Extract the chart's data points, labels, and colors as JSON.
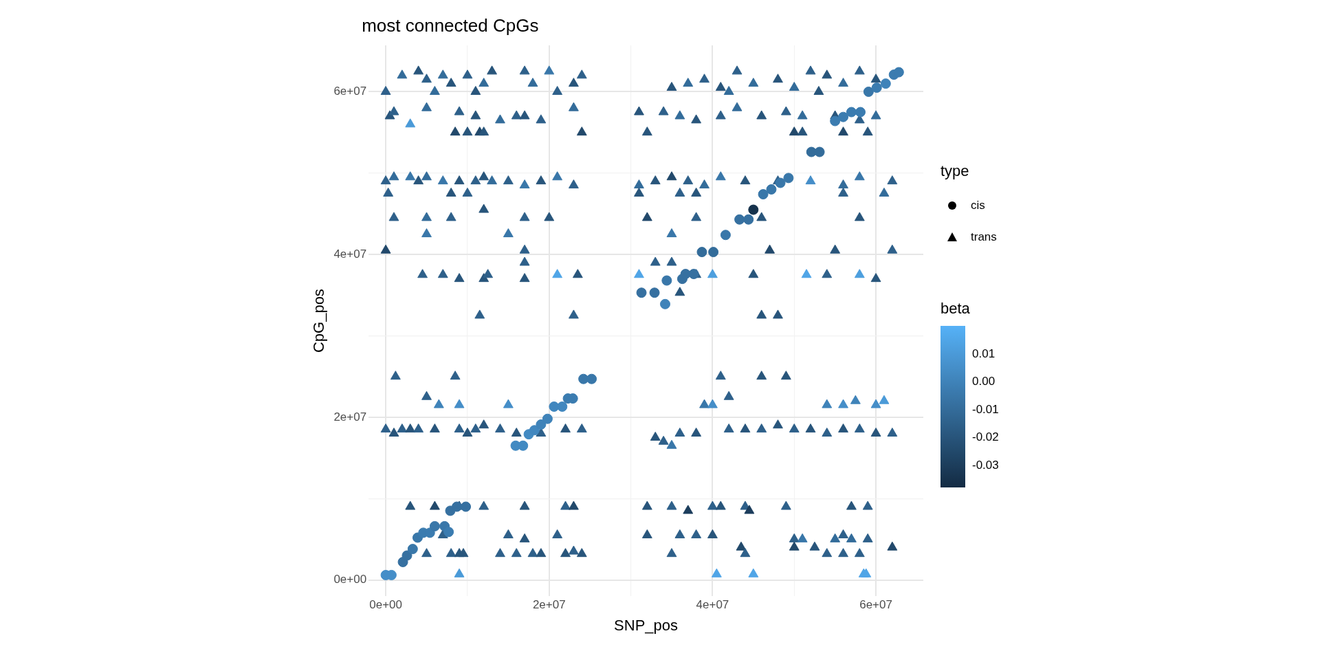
{
  "chart_data": {
    "type": "scatter",
    "title": "most connected CpGs",
    "xlabel": "SNP_pos",
    "ylabel": "CpG_pos",
    "legend_title": "type",
    "clabel": "beta",
    "xlim": [
      -2100000.0,
      65800000.0
    ],
    "ylim": [
      -2000000.0,
      65700000.0
    ],
    "xticks": [
      {
        "value": 0,
        "label": "0e+00"
      },
      {
        "value": 10000000.0,
        "label": null
      },
      {
        "value": 20000000.0,
        "label": "2e+07"
      },
      {
        "value": 30000000.0,
        "label": null
      },
      {
        "value": 40000000.0,
        "label": "4e+07"
      },
      {
        "value": 50000000.0,
        "label": null
      },
      {
        "value": 60000000.0,
        "label": "6e+07"
      }
    ],
    "yticks": [
      {
        "value": 0,
        "label": "0e+00"
      },
      {
        "value": 10000000.0,
        "label": null
      },
      {
        "value": 20000000.0,
        "label": "2e+07"
      },
      {
        "value": 30000000.0,
        "label": null
      },
      {
        "value": 40000000.0,
        "label": "4e+07"
      },
      {
        "value": 50000000.0,
        "label": null
      },
      {
        "value": 60000000.0,
        "label": "6e+07"
      }
    ],
    "clim": [
      -0.038,
      0.02
    ],
    "cticks": [
      0.01,
      {
        "value": 0,
        "label": "0.00"
      },
      -0.01,
      -0.02,
      -0.03
    ],
    "grid": true,
    "legend": "right",
    "series": [
      {
        "name": "cis",
        "marker": "circle",
        "x": [
          0,
          700000.0,
          2100000.0,
          2600000.0,
          3300000.0,
          3900000.0,
          4600000.0,
          5400000.0,
          6000000.0,
          7200000.0,
          7700000.0,
          7900000.0,
          8700000.0,
          9800000.0,
          15900000.0,
          16800000.0,
          17500000.0,
          18200000.0,
          19000000.0,
          19800000.0,
          20600000.0,
          21600000.0,
          22300000.0,
          22900000.0,
          24200000.0,
          25200000.0,
          31300000.0,
          32900000.0,
          34200000.0,
          34400000.0,
          36300000.0,
          36700000.0,
          37700000.0,
          38700000.0,
          40100000.0,
          41600000.0,
          43300000.0,
          44400000.0,
          45000000.0,
          46200000.0,
          47200000.0,
          48300000.0,
          49300000.0,
          52100000.0,
          53100000.0,
          55000000.0,
          56000000.0,
          57000000.0,
          58100000.0,
          59100000.0,
          60100000.0,
          61200000.0,
          62200000.0,
          62800000.0
        ],
        "values": [
          600000.0,
          600000.0,
          2200000.0,
          3000000.0,
          3800000.0,
          5200000.0,
          5800000.0,
          5800000.0,
          6600000.0,
          6600000.0,
          5900000.0,
          8500000.0,
          9000000.0,
          9000000.0,
          16500000.0,
          16500000.0,
          17900000.0,
          18400000.0,
          19100000.0,
          19800000.0,
          21300000.0,
          21300000.0,
          22300000.0,
          22300000.0,
          24700000.0,
          24700000.0,
          35300000.0,
          35300000.0,
          33900000.0,
          36800000.0,
          37000000.0,
          37600000.0,
          37600000.0,
          40300000.0,
          40300000.0,
          42400000.0,
          44300000.0,
          44300000.0,
          45500000.0,
          47400000.0,
          48000000.0,
          48800000.0,
          49400000.0,
          52600000.0,
          52600000.0,
          56400000.0,
          56900000.0,
          57500000.0,
          57500000.0,
          60000000.0,
          60500000.0,
          61000000.0,
          62100000.0,
          62400000.0
        ],
        "colors": [
          "#458ec8",
          "#458ec8",
          "#3670a0",
          "#3670a0",
          "#3977a9",
          "#3977a9",
          "#3b7cb0",
          "#3b7cb0",
          "#3977a9",
          "#3977a9",
          "#3b7cb0",
          "#3670a0",
          "#3670a0",
          "#3670a0",
          "#428ac2",
          "#428ac2",
          "#428ac2",
          "#4187bf",
          "#3f83b9",
          "#3f83b9",
          "#4187bf",
          "#4187bf",
          "#3b7cb0",
          "#3b7cb0",
          "#3977a9",
          "#3977a9",
          "#3670a0",
          "#3670a0",
          "#3f83b9",
          "#3977a9",
          "#3670a0",
          "#3670a0",
          "#3670a0",
          "#336c9a",
          "#336c9a",
          "#3977a9",
          "#3670a0",
          "#3670a0",
          "#16324c",
          "#3977a9",
          "#3977a9",
          "#3977a9",
          "#3977a9",
          "#336c9a",
          "#336c9a",
          "#3b7cb0",
          "#3b7cb0",
          "#3b7cb0",
          "#3b7cb0",
          "#3977a9",
          "#3b7cb0",
          "#3f83b9",
          "#3b7cb0",
          "#3b7cb0"
        ],
        "cvalues": [
          0.005,
          0.005,
          -0.008,
          -0.008,
          -0.005,
          -0.005,
          -0.003,
          -0.003,
          -0.005,
          -0.005,
          -0.003,
          -0.008,
          -0.008,
          -0.008,
          0.003,
          0.003,
          0.003,
          0.002,
          0,
          0,
          0.002,
          0.002,
          -0.003,
          -0.003,
          -0.005,
          -0.005,
          -0.008,
          -0.008,
          0,
          -0.005,
          -0.008,
          -0.008,
          -0.008,
          -0.01,
          -0.01,
          -0.005,
          -0.008,
          -0.008,
          -0.035,
          -0.005,
          -0.005,
          -0.005,
          -0.005,
          -0.01,
          -0.01,
          -0.003,
          -0.003,
          -0.003,
          -0.003,
          -0.005,
          -0.003,
          0,
          -0.003,
          -0.003
        ]
      },
      {
        "name": "trans",
        "marker": "triangle",
        "x": [
          2000000.0,
          4000000.0,
          5000000.0,
          7000000.0,
          8000000.0,
          10000000.0,
          12000000.0,
          13000000.0,
          17000000.0,
          18000000.0,
          20000000.0,
          23000000.0,
          24000000.0,
          35000000.0,
          37000000.0,
          39000000.0,
          41000000.0,
          43000000.0,
          45000000.0,
          48000000.0,
          50000000.0,
          52000000.0,
          54000000.0,
          56000000.0,
          58000000.0,
          60000000.0,
          0,
          6000000.0,
          11000000.0,
          21000000.0,
          42000000.0,
          53000000.0,
          500000.0,
          1000000.0,
          3000000.0,
          5000000.0,
          9000000.0,
          11000000.0,
          14000000.0,
          16000000.0,
          17000000.0,
          19000000.0,
          23000000.0,
          31000000.0,
          34000000.0,
          36000000.0,
          38000000.0,
          41000000.0,
          43000000.0,
          46000000.0,
          49000000.0,
          51000000.0,
          55000000.0,
          58000000.0,
          60000000.0,
          8500000.0,
          10000000.0,
          11500000.0,
          12000000.0,
          24000000.0,
          32000000.0,
          50000000.0,
          51000000.0,
          56000000.0,
          59000000.0,
          0,
          1000000.0,
          3000000.0,
          4000000.0,
          5000000.0,
          7000000.0,
          9000000.0,
          11000000.0,
          12000000.0,
          13000000.0,
          15000000.0,
          17000000.0,
          19000000.0,
          21000000.0,
          23000000.0,
          31000000.0,
          33000000.0,
          35000000.0,
          37000000.0,
          39000000.0,
          41000000.0,
          44000000.0,
          48000000.0,
          52000000.0,
          56000000.0,
          58000000.0,
          62000000.0,
          300000.0,
          8000000.0,
          10000000.0,
          31000000.0,
          36000000.0,
          38000000.0,
          56000000.0,
          61000000.0,
          1000000.0,
          5000000.0,
          8000000.0,
          12000000.0,
          17000000.0,
          20000000.0,
          32000000.0,
          38000000.0,
          46000000.0,
          58000000.0,
          5000000.0,
          15000000.0,
          35000000.0,
          0,
          17000000.0,
          47000000.0,
          55000000.0,
          62000000.0,
          17000000.0,
          4500000.0,
          7000000.0,
          9000000.0,
          12000000.0,
          12500000.0,
          17000000.0,
          21000000.0,
          23500000.0,
          31000000.0,
          38000000.0,
          40000000.0,
          45000000.0,
          51500000.0,
          54000000.0,
          58000000.0,
          60000000.0,
          33000000.0,
          35000000.0,
          11500000.0,
          23000000.0,
          36000000.0,
          46000000.0,
          48000000.0,
          1200000.0,
          8500000.0,
          41000000.0,
          46000000.0,
          49000000.0,
          5000000.0,
          6500000.0,
          9000000.0,
          15000000.0,
          39000000.0,
          40000000.0,
          42000000.0,
          54000000.0,
          56000000.0,
          57500000.0,
          60000000.0,
          61000000.0,
          0,
          1000000.0,
          2000000.0,
          3000000.0,
          4000000.0,
          6000000.0,
          9000000.0,
          10000000.0,
          11000000.0,
          12000000.0,
          14000000.0,
          16000000.0,
          19000000.0,
          22000000.0,
          24000000.0,
          33000000.0,
          34000000.0,
          35000000.0,
          36000000.0,
          38000000.0,
          42000000.0,
          44000000.0,
          46000000.0,
          48000000.0,
          50000000.0,
          52000000.0,
          54000000.0,
          56000000.0,
          58000000.0,
          60000000.0,
          62000000.0,
          3000000.0,
          6000000.0,
          9000000.0,
          12000000.0,
          17000000.0,
          22000000.0,
          23000000.0,
          32000000.0,
          35000000.0,
          37000000.0,
          40000000.0,
          41000000.0,
          44000000.0,
          44500000.0,
          49000000.0,
          57000000.0,
          59000000.0,
          7000000.0,
          15000000.0,
          17000000.0,
          21000000.0,
          32000000.0,
          36000000.0,
          38000000.0,
          40000000.0,
          50000000.0,
          51000000.0,
          55000000.0,
          56000000.0,
          57000000.0,
          59000000.0,
          43500000.0,
          50000000.0,
          52500000.0,
          62000000.0,
          5000000.0,
          8000000.0,
          9000000.0,
          9500000.0,
          14000000.0,
          16000000.0,
          18000000.0,
          19000000.0,
          22000000.0,
          23000000.0,
          24000000.0,
          35000000.0,
          44000000.0,
          54000000.0,
          56000000.0,
          58000000.0,
          9000000.0,
          40500000.0,
          45000000.0,
          58500000.0,
          58800000.0
        ],
        "values": [
          62000000.0,
          62500000.0,
          61500000.0,
          62000000.0,
          61000000.0,
          62000000.0,
          61000000.0,
          62500000.0,
          62500000.0,
          61000000.0,
          62500000.0,
          61000000.0,
          62000000.0,
          60500000.0,
          61000000.0,
          61500000.0,
          60500000.0,
          62500000.0,
          61000000.0,
          61500000.0,
          60500000.0,
          62500000.0,
          62000000.0,
          61000000.0,
          62500000.0,
          61500000.0,
          60000000.0,
          60000000.0,
          60000000.0,
          60000000.0,
          60000000.0,
          60000000.0,
          57000000.0,
          57500000.0,
          56000000.0,
          58000000.0,
          57500000.0,
          57000000.0,
          56500000.0,
          57000000.0,
          57000000.0,
          56500000.0,
          58000000.0,
          57500000.0,
          57500000.0,
          57000000.0,
          56500000.0,
          57000000.0,
          58000000.0,
          57000000.0,
          57500000.0,
          57000000.0,
          57000000.0,
          56500000.0,
          57000000.0,
          55000000.0,
          55000000.0,
          55000000.0,
          55000000.0,
          55000000.0,
          55000000.0,
          55000000.0,
          55000000.0,
          55000000.0,
          55000000.0,
          49000000.0,
          49500000.0,
          49500000.0,
          49000000.0,
          49500000.0,
          49000000.0,
          49000000.0,
          49000000.0,
          49500000.0,
          49000000.0,
          49000000.0,
          48500000.0,
          49000000.0,
          49500000.0,
          48500000.0,
          48500000.0,
          49000000.0,
          49500000.0,
          49000000.0,
          48500000.0,
          49500000.0,
          49000000.0,
          49000000.0,
          49000000.0,
          48500000.0,
          49500000.0,
          49000000.0,
          47500000.0,
          47500000.0,
          47500000.0,
          47500000.0,
          47500000.0,
          47500000.0,
          47500000.0,
          47500000.0,
          44500000.0,
          44500000.0,
          44500000.0,
          45500000.0,
          44500000.0,
          44500000.0,
          44500000.0,
          44500000.0,
          44500000.0,
          44500000.0,
          42500000.0,
          42500000.0,
          42500000.0,
          40500000.0,
          40500000.0,
          40500000.0,
          40500000.0,
          40500000.0,
          39000000.0,
          37500000.0,
          37500000.0,
          37000000.0,
          37000000.0,
          37500000.0,
          37000000.0,
          37500000.0,
          37500000.0,
          37500000.0,
          37500000.0,
          37500000.0,
          37500000.0,
          37500000.0,
          37500000.0,
          37500000.0,
          37000000.0,
          39000000.0,
          39000000.0,
          32500000.0,
          32500000.0,
          35300000.0,
          32500000.0,
          32500000.0,
          25000000.0,
          25000000.0,
          25000000.0,
          25000000.0,
          25000000.0,
          22500000.0,
          21500000.0,
          21500000.0,
          21500000.0,
          21500000.0,
          21500000.0,
          22500000.0,
          21500000.0,
          21500000.0,
          22000000.0,
          21500000.0,
          22000000.0,
          18500000.0,
          18000000.0,
          18500000.0,
          18500000.0,
          18500000.0,
          18500000.0,
          18500000.0,
          18000000.0,
          18500000.0,
          19000000.0,
          18500000.0,
          18000000.0,
          18000000.0,
          18500000.0,
          18500000.0,
          17500000.0,
          17000000.0,
          16500000.0,
          18000000.0,
          18000000.0,
          18500000.0,
          18500000.0,
          18500000.0,
          19000000.0,
          18500000.0,
          18500000.0,
          18000000.0,
          18500000.0,
          18500000.0,
          18000000.0,
          18000000.0,
          9000000.0,
          9000000.0,
          9000000.0,
          9000000.0,
          9000000.0,
          9000000.0,
          9000000.0,
          9000000.0,
          9000000.0,
          8500000.0,
          9000000.0,
          9000000.0,
          9000000.0,
          8500000.0,
          9000000.0,
          9000000.0,
          9000000.0,
          5500000.0,
          5500000.0,
          5000000.0,
          5500000.0,
          5500000.0,
          5500000.0,
          5500000.0,
          5500000.0,
          5000000.0,
          5000000.0,
          5000000.0,
          5500000.0,
          5000000.0,
          5000000.0,
          4000000.0,
          4000000.0,
          4000000.0,
          4000000.0,
          3200000.0,
          3200000.0,
          3200000.0,
          3200000.0,
          3200000.0,
          3200000.0,
          3200000.0,
          3200000.0,
          3200000.0,
          3500000.0,
          3200000.0,
          3200000.0,
          3200000.0,
          3200000.0,
          3200000.0,
          3200000.0,
          700000.0,
          700000.0,
          700000.0,
          700000.0,
          700000.0
        ],
        "colors": [
          "#336c9a",
          "#28557b",
          "#2e608a",
          "#336c9a",
          "#28557b",
          "#2e608a",
          "#336c9a",
          "#28557b",
          "#2e608a",
          "#336c9a",
          "#3977a9",
          "#28557b",
          "#2e608a",
          "#28557b",
          "#336c9a",
          "#2e608a",
          "#28557b",
          "#2e608a",
          "#336c9a",
          "#28557b",
          "#336c9a",
          "#2e608a",
          "#28557b",
          "#336c9a",
          "#2e608a",
          "#28557b",
          "#2e608a",
          "#336c9a",
          "#28557b",
          "#2e608a",
          "#336c9a",
          "#28557b",
          "#28557b",
          "#2e608a",
          "#4a9ad8",
          "#336c9a",
          "#2e608a",
          "#28557b",
          "#336c9a",
          "#2e608a",
          "#28557b",
          "#2e608a",
          "#336c9a",
          "#28557b",
          "#2e608a",
          "#336c9a",
          "#28557b",
          "#2e608a",
          "#336c9a",
          "#28557b",
          "#2e608a",
          "#336c9a",
          "#28557b",
          "#2e608a",
          "#336c9a",
          "#22496b",
          "#28557b",
          "#22496b",
          "#28557b",
          "#22496b",
          "#28557b",
          "#22496b",
          "#28557b",
          "#22496b",
          "#28557b",
          "#2e608a",
          "#336c9a",
          "#3977a9",
          "#28557b",
          "#336c9a",
          "#3977a9",
          "#28557b",
          "#2e608a",
          "#28557b",
          "#336c9a",
          "#2e608a",
          "#3977a9",
          "#28557b",
          "#3977a9",
          "#2e608a",
          "#336c9a",
          "#28557b",
          "#22496b",
          "#2e608a",
          "#336c9a",
          "#3977a9",
          "#28557b",
          "#2e608a",
          "#458ec8",
          "#336c9a",
          "#3977a9",
          "#2e608a",
          "#2e608a",
          "#28557b",
          "#2e608a",
          "#28557b",
          "#2e608a",
          "#28557b",
          "#2e608a",
          "#336c9a",
          "#2e608a",
          "#336c9a",
          "#2e608a",
          "#28557b",
          "#2e608a",
          "#28557b",
          "#22496b",
          "#2e608a",
          "#28557b",
          "#28557b",
          "#3977a9",
          "#3977a9",
          "#3977a9",
          "#22496b",
          "#2e608a",
          "#22496b",
          "#28557b",
          "#2e608a",
          "#2e608a",
          "#2e608a",
          "#2e608a",
          "#28557b",
          "#28557b",
          "#2e608a",
          "#28557b",
          "#50a5e7",
          "#28557b",
          "#50a5e7",
          "#2e608a",
          "#4d9fde",
          "#28557b",
          "#50a5e7",
          "#2e608a",
          "#4d9fde",
          "#28557b",
          "#2e608a",
          "#2e608a",
          "#2e608a",
          "#2e608a",
          "#28557b",
          "#28557b",
          "#28557b",
          "#2e608a",
          "#2e608a",
          "#2e608a",
          "#28557b",
          "#28557b",
          "#2e608a",
          "#3f83b9",
          "#458ec8",
          "#458ec8",
          "#3977a9",
          "#458ec8",
          "#2e608a",
          "#3f83b9",
          "#458ec8",
          "#3f83b9",
          "#458ec8",
          "#4a9ad8",
          "#2e608a",
          "#28557b",
          "#2e608a",
          "#28557b",
          "#2e608a",
          "#28557b",
          "#2e608a",
          "#28557b",
          "#2e608a",
          "#28557b",
          "#2e608a",
          "#28557b",
          "#2e608a",
          "#28557b",
          "#2e608a",
          "#28557b",
          "#2e608a",
          "#3977a9",
          "#2e608a",
          "#28557b",
          "#2e608a",
          "#28557b",
          "#2e608a",
          "#28557b",
          "#2e608a",
          "#28557b",
          "#2e608a",
          "#28557b",
          "#2e608a",
          "#28557b",
          "#2e608a",
          "#28557b",
          "#22496b",
          "#28557b",
          "#2e608a",
          "#28557b",
          "#2e608a",
          "#22496b",
          "#28557b",
          "#2e608a",
          "#1c3d5c",
          "#2e608a",
          "#28557b",
          "#2e608a",
          "#1c3d5c",
          "#2e608a",
          "#28557b",
          "#2e608a",
          "#2e608a",
          "#2e608a",
          "#28557b",
          "#2e608a",
          "#28557b",
          "#2e608a",
          "#2e608a",
          "#28557b",
          "#2e608a",
          "#3977a9",
          "#336c9a",
          "#2e608a",
          "#336c9a",
          "#2e608a",
          "#22496b",
          "#22496b",
          "#28557b",
          "#22496b",
          "#2e608a",
          "#2e608a",
          "#28557b",
          "#28557b",
          "#2e608a",
          "#2e608a",
          "#2e608a",
          "#28557b",
          "#28557b",
          "#2e608a",
          "#28557b",
          "#2e608a",
          "#2e608a",
          "#2e608a",
          "#2e608a",
          "#2e608a",
          "#4a9ad8",
          "#50a5e7",
          "#50a5e7",
          "#50a5e7",
          "#50a5e7"
        ],
        "cvalues": [
          -0.01,
          -0.02,
          -0.015,
          -0.01,
          -0.02,
          -0.015,
          -0.01,
          -0.02,
          -0.015,
          -0.01,
          -0.005,
          -0.02,
          -0.015,
          -0.02,
          -0.01,
          -0.015,
          -0.02,
          -0.015,
          -0.01,
          -0.02,
          -0.01,
          -0.015,
          -0.02,
          -0.01,
          -0.015,
          -0.02,
          -0.015,
          -0.01,
          -0.02,
          -0.015,
          -0.01,
          -0.02,
          -0.02,
          -0.015,
          0.01,
          -0.01,
          -0.015,
          -0.02,
          -0.01,
          -0.015,
          -0.02,
          -0.015,
          -0.01,
          -0.02,
          -0.015,
          -0.01,
          -0.02,
          -0.015,
          -0.01,
          -0.02,
          -0.015,
          -0.01,
          -0.02,
          -0.015,
          -0.01,
          -0.025,
          -0.02,
          -0.025,
          -0.02,
          -0.025,
          -0.02,
          -0.025,
          -0.02,
          -0.025,
          -0.02,
          -0.015,
          -0.01,
          -0.005,
          -0.02,
          -0.01,
          -0.005,
          -0.02,
          -0.015,
          -0.02,
          -0.01,
          -0.015,
          -0.005,
          -0.02,
          -0.005,
          -0.015,
          -0.01,
          -0.02,
          -0.025,
          -0.015,
          -0.01,
          -0.005,
          -0.02,
          -0.015,
          0.005,
          -0.01,
          -0.005,
          -0.015,
          -0.015,
          -0.02,
          -0.015,
          -0.02,
          -0.015,
          -0.02,
          -0.015,
          -0.01,
          -0.015,
          -0.01,
          -0.015,
          -0.02,
          -0.015,
          -0.02,
          -0.025,
          -0.015,
          -0.02,
          -0.02,
          -0.005,
          -0.005,
          -0.005,
          -0.025,
          -0.015,
          -0.025,
          -0.02,
          -0.015,
          -0.015,
          -0.015,
          -0.015,
          -0.02,
          -0.02,
          -0.015,
          -0.02,
          0.015,
          -0.02,
          0.015,
          -0.015,
          0.012,
          -0.02,
          0.015,
          -0.015,
          0.012,
          -0.02,
          -0.015,
          -0.015,
          -0.015,
          -0.015,
          -0.02,
          -0.02,
          -0.02,
          -0.015,
          -0.015,
          -0.015,
          -0.02,
          -0.02,
          -0.015,
          0,
          0.005,
          0.005,
          -0.005,
          0.005,
          -0.015,
          0,
          0.005,
          0,
          0.005,
          0.01,
          -0.015,
          -0.02,
          -0.015,
          -0.02,
          -0.015,
          -0.02,
          -0.015,
          -0.02,
          -0.015,
          -0.02,
          -0.015,
          -0.02,
          -0.015,
          -0.02,
          -0.015,
          -0.02,
          -0.015,
          -0.005,
          -0.015,
          -0.02,
          -0.015,
          -0.02,
          -0.015,
          -0.02,
          -0.015,
          -0.02,
          -0.015,
          -0.02,
          -0.015,
          -0.02,
          -0.015,
          -0.02,
          -0.025,
          -0.02,
          -0.015,
          -0.02,
          -0.015,
          -0.025,
          -0.02,
          -0.015,
          -0.03,
          -0.015,
          -0.02,
          -0.015,
          -0.03,
          -0.015,
          -0.02,
          -0.015,
          -0.015,
          -0.015,
          -0.02,
          -0.015,
          -0.02,
          -0.015,
          -0.015,
          -0.02,
          -0.015,
          -0.005,
          -0.01,
          -0.015,
          -0.01,
          -0.015,
          -0.025,
          -0.025,
          -0.02,
          -0.025,
          -0.015,
          -0.015,
          -0.02,
          -0.02,
          -0.015,
          -0.015,
          -0.015,
          -0.02,
          -0.02,
          -0.015,
          -0.02,
          -0.015,
          -0.015,
          -0.015,
          -0.015,
          -0.015,
          0.01,
          0.015,
          0.015,
          0.015,
          0.015
        ]
      }
    ]
  }
}
